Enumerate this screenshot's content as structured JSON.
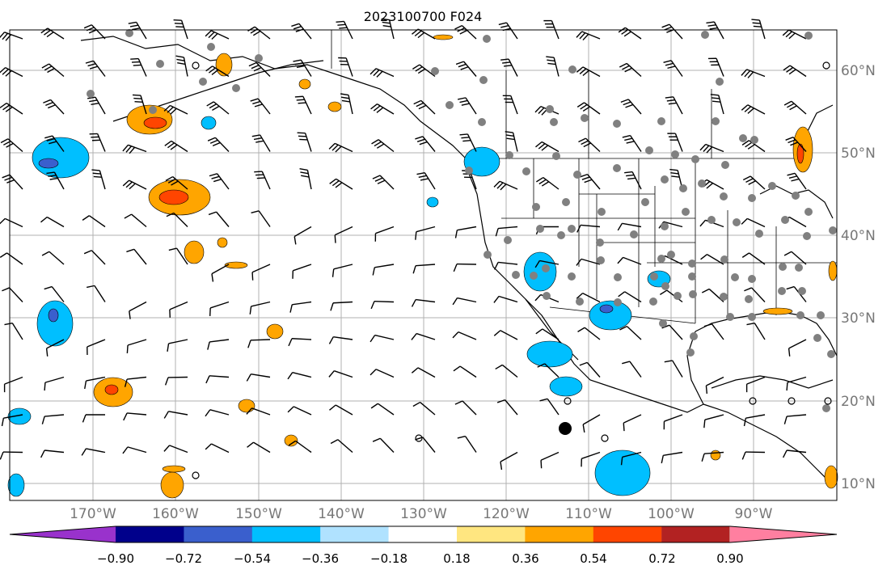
{
  "title": "2023100700 F024",
  "lat_labels": [
    "60°N",
    "50°N",
    "40°N",
    "30°N",
    "20°N",
    "10°N"
  ],
  "lon_labels": [
    "170°W",
    "160°W",
    "150°W",
    "140°W",
    "130°W",
    "120°W",
    "110°W",
    "100°W",
    "90°W"
  ],
  "colorbar": {
    "tick_labels": [
      "−0.90",
      "−0.72",
      "−0.54",
      "−0.36",
      "−0.18",
      "0.18",
      "0.36",
      "0.54",
      "0.72",
      "0.90"
    ],
    "colors": [
      "#9932cc",
      "#00008b",
      "#3a5fcd",
      "#00bfff",
      "#b0e2ff",
      "#ffffff",
      "#ffe680",
      "#ffa500",
      "#ff4500",
      "#b22222",
      "#ff7fa0"
    ]
  },
  "colors": {
    "contour_line": "#000000",
    "grid": "#b0b0b0",
    "station_marker": "#808080"
  }
}
